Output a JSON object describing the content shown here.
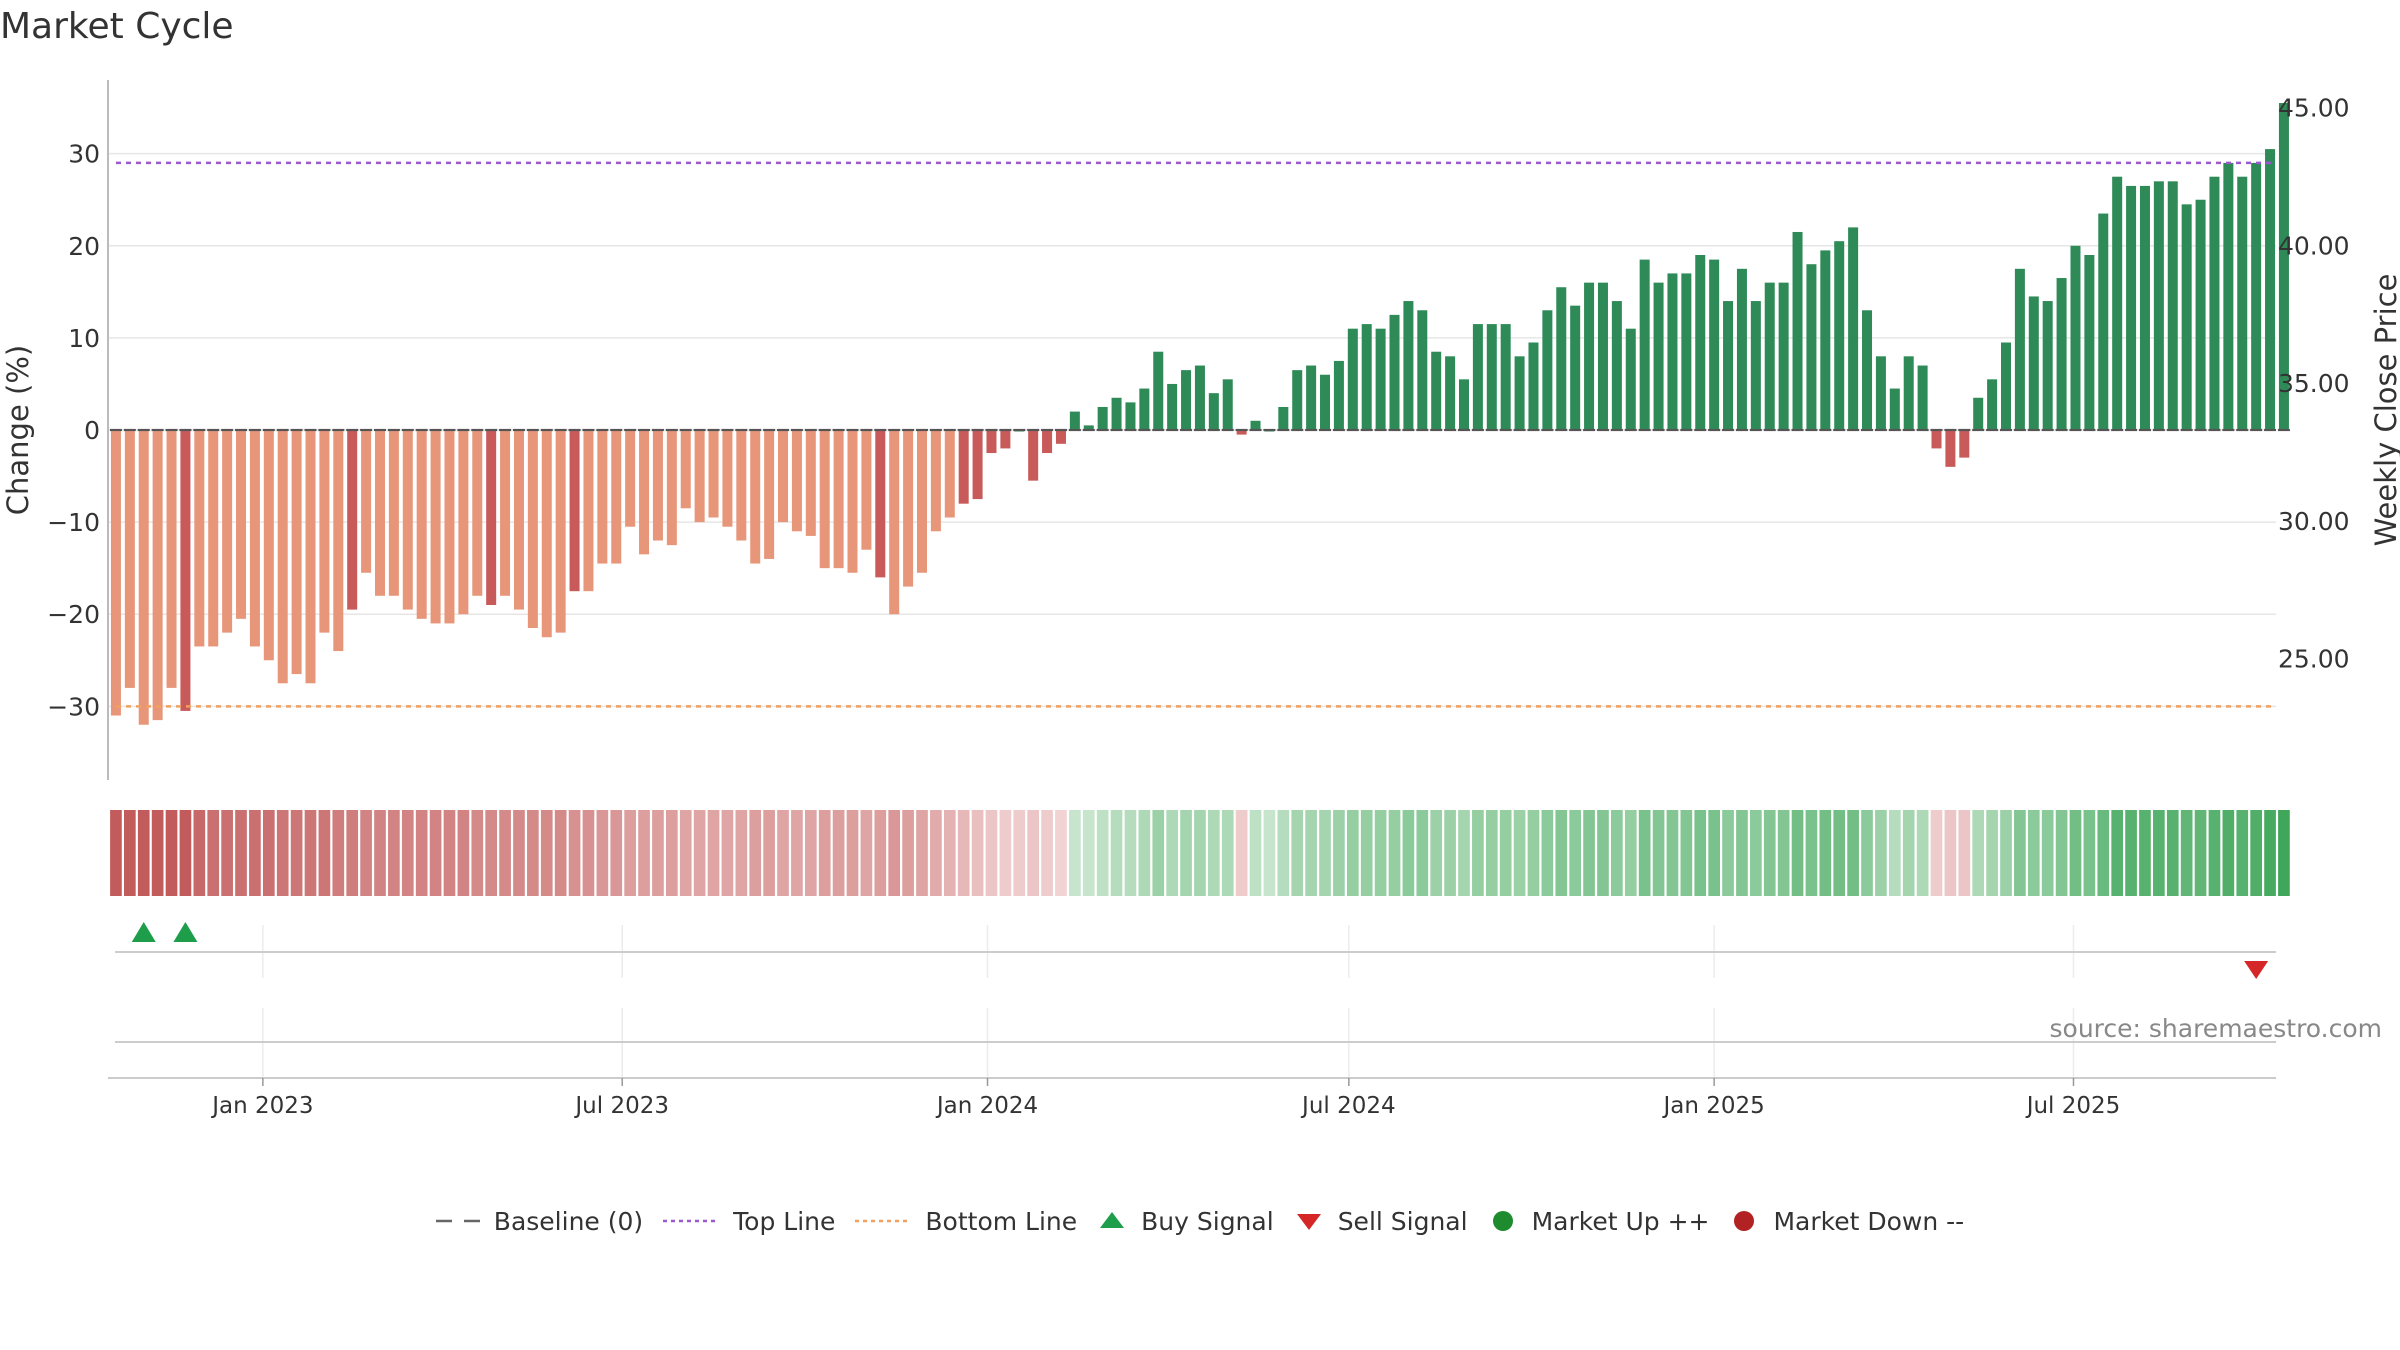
{
  "title": "Market Cycle",
  "source": "source: sharemaestro.com",
  "colors": {
    "strong_up": "#2e8b57",
    "weak_up": "#82c383",
    "strong_down": "#c85a5a",
    "weak_down": "#e8967a",
    "top_line": "#9b59d0",
    "bottom_line": "#f0a060",
    "buy": "#1e9e4a",
    "sell": "#d62728",
    "market_up": "#1e8b2e",
    "market_down": "#b22222"
  },
  "legend": [
    {
      "key": "baseline",
      "label": "Baseline (0)",
      "icon": "dash-line-icon"
    },
    {
      "key": "top",
      "label": "Top Line",
      "icon": "dotted-purple-line-icon"
    },
    {
      "key": "bottom",
      "label": "Bottom Line",
      "icon": "dotted-orange-line-icon"
    },
    {
      "key": "buy",
      "label": "Buy Signal",
      "icon": "triangle-up-icon"
    },
    {
      "key": "sell",
      "label": "Sell Signal",
      "icon": "triangle-down-icon"
    },
    {
      "key": "up",
      "label": "Market Up ++",
      "icon": "circle-green-icon"
    },
    {
      "key": "down",
      "label": "Market Down --",
      "icon": "circle-red-icon"
    }
  ],
  "chart_data": {
    "type": "bar",
    "ylabel": "Change (%)",
    "y2label": "Weekly Close Price",
    "ylim": [
      -38,
      38
    ],
    "yticks": [
      30,
      20,
      10,
      0,
      -10,
      -20,
      -30
    ],
    "ytick_labels": [
      "30",
      "20",
      "10",
      "0",
      "−10",
      "−20",
      "−30"
    ],
    "y2lim": [
      20.6,
      46.0
    ],
    "y2ticks": [
      45,
      40,
      35,
      30,
      25
    ],
    "y2tick_labels": [
      "45.00",
      "40.00",
      "35.00",
      "30.00",
      "25.00"
    ],
    "top_line": 29.0,
    "bottom_line": -30.0,
    "grid": true,
    "xlim": [
      "2022-10-15",
      "2025-10-11"
    ],
    "xticks": [
      {
        "date": "2023-01-01",
        "label": "Jan 2023"
      },
      {
        "date": "2023-07-01",
        "label": "Jul 2023"
      },
      {
        "date": "2024-01-01",
        "label": "Jan 2024"
      },
      {
        "date": "2024-07-01",
        "label": "Jul 2024"
      },
      {
        "date": "2025-01-01",
        "label": "Jan 2025"
      },
      {
        "date": "2025-07-01",
        "label": "Jul 2025"
      }
    ],
    "first_week": "2022-10-19",
    "week_step_days": 7,
    "values": [
      -31,
      -28,
      -32,
      -31.5,
      -28,
      -30.5,
      -23.5,
      -23.5,
      -22,
      -20.5,
      -23.5,
      -25,
      -27.5,
      -26.5,
      -27.5,
      -22,
      -24,
      -19.5,
      -15.5,
      -18,
      -18,
      -19.5,
      -20.5,
      -21,
      -21,
      -20,
      -18,
      -19,
      -18,
      -19.5,
      -21.5,
      -22.5,
      -22,
      -17.5,
      -17.5,
      -14.5,
      -14.5,
      -10.5,
      -13.5,
      -12,
      -12.5,
      -8.5,
      -10,
      -9.5,
      -10.5,
      -12,
      -14.5,
      -14,
      -10,
      -11,
      -11.5,
      -15,
      -15,
      -15.5,
      -13,
      -16,
      -20,
      -17,
      -15.5,
      -11,
      -9.5,
      -8,
      -7.5,
      -2.5,
      -2,
      0,
      -5.5,
      -2.5,
      -1.5,
      2,
      0.5,
      2.5,
      3.5,
      3,
      4.5,
      8.5,
      5,
      6.5,
      7,
      4,
      5.5,
      -0.5,
      1,
      0,
      2.5,
      6.5,
      7,
      6,
      7.5,
      11,
      11.5,
      11,
      12.5,
      14,
      13,
      8.5,
      8,
      5.5,
      11.5,
      11.5,
      11.5,
      8,
      9.5,
      13,
      15.5,
      13.5,
      16,
      16,
      14,
      11,
      18.5,
      16,
      17,
      17,
      19,
      18.5,
      14,
      17.5,
      14,
      16,
      16,
      21.5,
      18,
      19.5,
      20.5,
      22,
      13,
      8,
      4.5,
      8,
      7,
      -2,
      -4,
      -3,
      3.5,
      5.5,
      9.5,
      17.5,
      14.5,
      14,
      16.5,
      20,
      19,
      23.5,
      27.5,
      26.5,
      26.5,
      27,
      27,
      24.5,
      25,
      27.5,
      29,
      27.5,
      29,
      30.5,
      35.5
    ],
    "bar_type": "FFFFFSFFFFFFFFFFFSFFFFFFFFFSFFFFFSFFFFFFFFFFFFFFFFFFFFFSFFFFFSSSSSSSSSSSSSSSSSSSSSSSSSSSSSSSSSSSSSSSSSSSSSSSSSSSSSSSSSSSSSSSSSSSSSSSSSSSSSSSSSSSSSSSSSSSSSSSSSSSSSSS",
    "strip": [
      -1,
      -1,
      -1,
      -1,
      -1,
      -1,
      -0.9,
      -0.85,
      -0.85,
      -0.85,
      -0.85,
      -0.85,
      -0.8,
      -0.8,
      -0.8,
      -0.8,
      -0.75,
      -0.75,
      -0.7,
      -0.7,
      -0.7,
      -0.7,
      -0.7,
      -0.7,
      -0.7,
      -0.7,
      -0.65,
      -0.65,
      -0.65,
      -0.65,
      -0.65,
      -0.65,
      -0.65,
      -0.6,
      -0.6,
      -0.55,
      -0.55,
      -0.5,
      -0.5,
      -0.5,
      -0.5,
      -0.45,
      -0.45,
      -0.45,
      -0.45,
      -0.45,
      -0.5,
      -0.5,
      -0.45,
      -0.45,
      -0.45,
      -0.5,
      -0.5,
      -0.5,
      -0.45,
      -0.5,
      -0.55,
      -0.5,
      -0.45,
      -0.4,
      -0.35,
      -0.3,
      -0.25,
      -0.2,
      -0.15,
      -0.15,
      -0.2,
      -0.15,
      -0.1,
      0.2,
      0.2,
      0.25,
      0.3,
      0.3,
      0.35,
      0.45,
      0.35,
      0.4,
      0.4,
      0.35,
      0.35,
      -0.15,
      0.25,
      0.2,
      0.3,
      0.4,
      0.4,
      0.4,
      0.45,
      0.5,
      0.5,
      0.5,
      0.5,
      0.55,
      0.55,
      0.45,
      0.45,
      0.4,
      0.5,
      0.5,
      0.5,
      0.45,
      0.5,
      0.55,
      0.6,
      0.55,
      0.6,
      0.6,
      0.55,
      0.5,
      0.65,
      0.6,
      0.6,
      0.6,
      0.65,
      0.65,
      0.55,
      0.6,
      0.55,
      0.6,
      0.6,
      0.7,
      0.65,
      0.7,
      0.7,
      0.7,
      0.55,
      0.45,
      0.3,
      0.4,
      0.35,
      -0.15,
      -0.2,
      -0.2,
      0.35,
      0.4,
      0.45,
      0.6,
      0.55,
      0.55,
      0.6,
      0.7,
      0.65,
      0.75,
      0.85,
      0.85,
      0.85,
      0.85,
      0.85,
      0.8,
      0.8,
      0.85,
      0.9,
      0.85,
      0.9,
      0.95,
      1
    ],
    "buy_signals": [
      "2022-11-02",
      "2022-11-23"
    ],
    "sell_signals": [
      "2025-10-01"
    ],
    "market_up": [],
    "market_down": []
  }
}
